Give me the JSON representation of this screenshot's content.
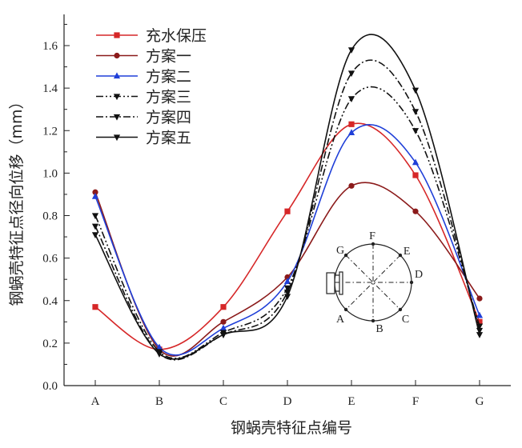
{
  "chart_data": {
    "type": "line",
    "xlabel": "钢蜗壳特征点编号",
    "ylabel": "钢蜗壳特征点径向位移（mm）",
    "categories": [
      "A",
      "B",
      "C",
      "D",
      "E",
      "F",
      "G"
    ],
    "ylim": [
      0.0,
      1.7
    ],
    "yticks": [
      "0.0",
      "0.2",
      "0.4",
      "0.6",
      "0.8",
      "1.0",
      "1.2",
      "1.4",
      "1.6"
    ],
    "legend_position": "top-left",
    "series": [
      {
        "name": "充水保压",
        "color": "#d62728",
        "marker": "square",
        "dash": "solid",
        "values": [
          0.37,
          0.17,
          0.37,
          0.82,
          1.23,
          0.99,
          0.3
        ]
      },
      {
        "name": "方案一",
        "color": "#8b1a1a",
        "marker": "circle",
        "dash": "solid",
        "values": [
          0.91,
          0.17,
          0.3,
          0.51,
          0.94,
          0.82,
          0.41
        ]
      },
      {
        "name": "方案二",
        "color": "#1f3fd8",
        "marker": "triangle-up",
        "dash": "solid",
        "values": [
          0.89,
          0.18,
          0.27,
          0.49,
          1.19,
          1.05,
          0.33
        ]
      },
      {
        "name": "方案三",
        "color": "#111111",
        "marker": "triangle-down",
        "dash": "dashdotdot",
        "values": [
          0.8,
          0.16,
          0.25,
          0.46,
          1.35,
          1.2,
          0.28
        ]
      },
      {
        "name": "方案四",
        "color": "#111111",
        "marker": "triangle-down",
        "dash": "dashdot",
        "values": [
          0.75,
          0.15,
          0.24,
          0.44,
          1.47,
          1.29,
          0.26
        ]
      },
      {
        "name": "方案五",
        "color": "#111111",
        "marker": "triangle-down",
        "dash": "solid",
        "values": [
          0.71,
          0.15,
          0.24,
          0.42,
          1.58,
          1.39,
          0.24
        ]
      }
    ]
  },
  "inset": {
    "point_labels": {
      "A": "A",
      "B": "B",
      "C": "C",
      "D": "D",
      "E": "E",
      "F": "F",
      "G": "G"
    }
  }
}
